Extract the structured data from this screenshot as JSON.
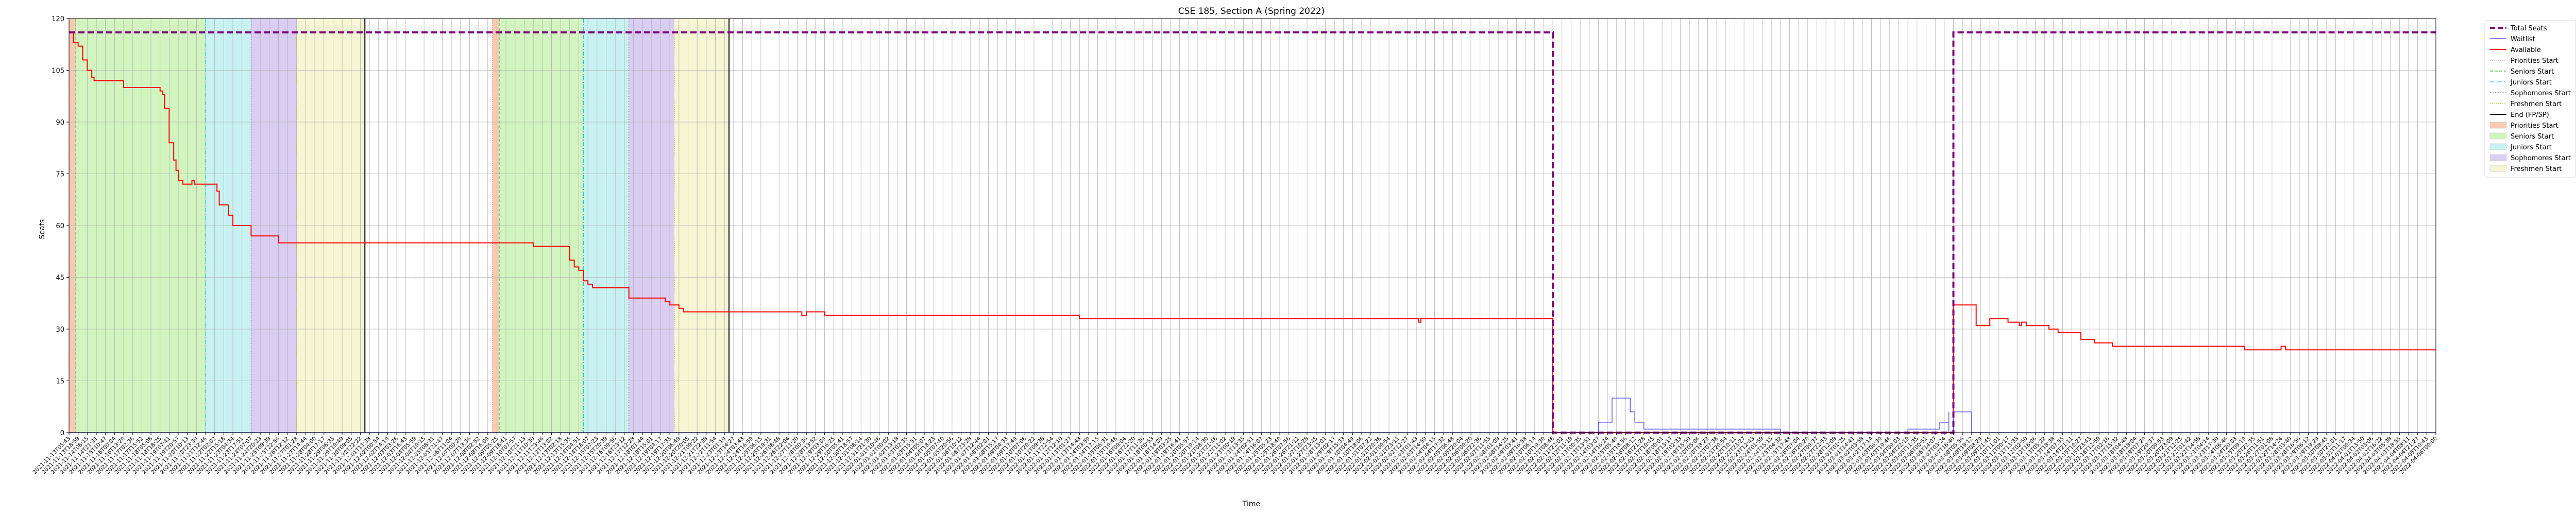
{
  "chart_data": {
    "type": "line",
    "title": "CSE 185, Section A (Spring 2022)",
    "xlabel": "Time",
    "ylabel": "Seats",
    "ylim": [
      0,
      120
    ],
    "yticks": [
      0,
      15,
      30,
      45,
      60,
      75,
      90,
      105,
      120
    ],
    "grid": true,
    "legend_position": "outside-right",
    "x_tick_label_samples": [
      "2021-11-13T05:43",
      "2022-01-07T19:00",
      "2022-02-26T00:00",
      "2022-04-06T00:00"
    ],
    "x_index_range": [
      0,
      520
    ],
    "series": [
      {
        "name": "Total Seats",
        "style": "dashed",
        "color": "#800080",
        "points": [
          [
            0,
            116
          ],
          [
            326,
            116
          ],
          [
            326,
            0
          ],
          [
            414,
            0
          ],
          [
            414,
            116
          ],
          [
            520,
            116
          ]
        ]
      },
      {
        "name": "Waitlist",
        "style": "solid",
        "color": "#5b5bf0",
        "points": [
          [
            0,
            0
          ],
          [
            335,
            0
          ],
          [
            336,
            3
          ],
          [
            339,
            10
          ],
          [
            342,
            10
          ],
          [
            343,
            6
          ],
          [
            344,
            3
          ],
          [
            346,
            1
          ],
          [
            375,
            1
          ],
          [
            376,
            0
          ],
          [
            403,
            0
          ],
          [
            404,
            1
          ],
          [
            410,
            1
          ],
          [
            411,
            3
          ],
          [
            413,
            6
          ],
          [
            413,
            0
          ],
          [
            414,
            6
          ],
          [
            418,
            6
          ],
          [
            418,
            0
          ],
          [
            520,
            0
          ]
        ]
      },
      {
        "name": "Available",
        "style": "solid",
        "color": "#ff0000",
        "points": [
          [
            0,
            116
          ],
          [
            1,
            113
          ],
          [
            2,
            112
          ],
          [
            3,
            108
          ],
          [
            4,
            105
          ],
          [
            5,
            103
          ],
          [
            5.5,
            102
          ],
          [
            11,
            102
          ],
          [
            12,
            100
          ],
          [
            19,
            100
          ],
          [
            20,
            99
          ],
          [
            20.5,
            98
          ],
          [
            21,
            94
          ],
          [
            22,
            84
          ],
          [
            23,
            79
          ],
          [
            23.5,
            76
          ],
          [
            24,
            73
          ],
          [
            25,
            72
          ],
          [
            26,
            72
          ],
          [
            27,
            73
          ],
          [
            27.5,
            72
          ],
          [
            32,
            72
          ],
          [
            32.5,
            70
          ],
          [
            33,
            66
          ],
          [
            35,
            63
          ],
          [
            36,
            60
          ],
          [
            39,
            60
          ],
          [
            40,
            57
          ],
          [
            45,
            57
          ],
          [
            46,
            55
          ],
          [
            101,
            55
          ],
          [
            102,
            54
          ],
          [
            109,
            54
          ],
          [
            110,
            50
          ],
          [
            111,
            48
          ],
          [
            112,
            47
          ],
          [
            113,
            44
          ],
          [
            114,
            43
          ],
          [
            115,
            42
          ],
          [
            122,
            42
          ],
          [
            123,
            39
          ],
          [
            130,
            39
          ],
          [
            131,
            38
          ],
          [
            132,
            37
          ],
          [
            133,
            37
          ],
          [
            134,
            36
          ],
          [
            135,
            35
          ],
          [
            160,
            35
          ],
          [
            161,
            34
          ],
          [
            162,
            35
          ],
          [
            165,
            35
          ],
          [
            166,
            34
          ],
          [
            221,
            34
          ],
          [
            222,
            33
          ],
          [
            296,
            33
          ],
          [
            296.5,
            32
          ],
          [
            297,
            33
          ],
          [
            326,
            33
          ],
          [
            326,
            0
          ],
          [
            414,
            0
          ],
          [
            414,
            37
          ],
          [
            418,
            37
          ],
          [
            419,
            31
          ],
          [
            421,
            31
          ],
          [
            422,
            33
          ],
          [
            425,
            33
          ],
          [
            426,
            32
          ],
          [
            428,
            32
          ],
          [
            428.5,
            31
          ],
          [
            429,
            32
          ],
          [
            430,
            31
          ],
          [
            434,
            31
          ],
          [
            435,
            30
          ],
          [
            437,
            29
          ],
          [
            441,
            29
          ],
          [
            442,
            27
          ],
          [
            444,
            27
          ],
          [
            445,
            26
          ],
          [
            448,
            26
          ],
          [
            449,
            25
          ],
          [
            477,
            25
          ],
          [
            478,
            24
          ],
          [
            485,
            24
          ],
          [
            486,
            25
          ],
          [
            487,
            24
          ],
          [
            520,
            24
          ]
        ]
      }
    ],
    "phases": [
      {
        "name": "Priorities Start",
        "x0": 0,
        "x1": 1.5,
        "color": "#f8c9b4"
      },
      {
        "name": "Seniors Start",
        "x0": 1.5,
        "x1": 30,
        "color": "#d2f5c0"
      },
      {
        "name": "Juniors Start",
        "x0": 30,
        "x1": 40,
        "color": "#c8f1f2"
      },
      {
        "name": "Sophomores Start",
        "x0": 40,
        "x1": 50,
        "color": "#dacdf2"
      },
      {
        "name": "Freshmen Start",
        "x0": 50,
        "x1": 65,
        "color": "#f6f5d4"
      },
      {
        "name": "Priorities Start",
        "x0": 93,
        "x1": 94.5,
        "color": "#f8c9b4"
      },
      {
        "name": "Seniors Start",
        "x0": 94.5,
        "x1": 113,
        "color": "#d2f5c0"
      },
      {
        "name": "Juniors Start",
        "x0": 113,
        "x1": 123,
        "color": "#c8f1f2"
      },
      {
        "name": "Sophomores Start",
        "x0": 123,
        "x1": 133,
        "color": "#dacdf2"
      },
      {
        "name": "Freshmen Start",
        "x0": 133,
        "x1": 145,
        "color": "#f6f5d4"
      }
    ],
    "end_lines": [
      65,
      145
    ],
    "legend": [
      {
        "label": "Total Seats",
        "kind": "line",
        "color": "#800080",
        "dash": "10,5",
        "width": 4
      },
      {
        "label": "Waitlist",
        "kind": "line",
        "color": "#5b5bf0",
        "dash": "",
        "width": 1.5
      },
      {
        "label": "Available",
        "kind": "line",
        "color": "#ff0000",
        "dash": "",
        "width": 2
      },
      {
        "label": "Priorities Start",
        "kind": "line",
        "color": "#f4a582",
        "dash": "2,2",
        "width": 1.2
      },
      {
        "label": "Seniors Start",
        "kind": "line",
        "color": "#2ca02c",
        "dash": "6,3",
        "width": 1.2
      },
      {
        "label": "Juniors Start",
        "kind": "line",
        "color": "#17becf",
        "dash": "8,3,2,3",
        "width": 1.2
      },
      {
        "label": "Sophomores Start",
        "kind": "line",
        "color": "#9467bd",
        "dash": "2,3",
        "width": 1.2
      },
      {
        "label": "Freshmen Start",
        "kind": "line",
        "color": "#bcbd22",
        "dash": "1,3",
        "width": 1.2
      },
      {
        "label": "End (FP/SP)",
        "kind": "line",
        "color": "#000000",
        "dash": "",
        "width": 2
      },
      {
        "label": "Priorities Start",
        "kind": "patch",
        "color": "#f8c9b4"
      },
      {
        "label": "Seniors Start",
        "kind": "patch",
        "color": "#d2f5c0"
      },
      {
        "label": "Juniors Start",
        "kind": "patch",
        "color": "#c8f1f2"
      },
      {
        "label": "Sophomores Start",
        "kind": "patch",
        "color": "#dacdf2"
      },
      {
        "label": "Freshmen Start",
        "kind": "patch",
        "color": "#f6f5d4"
      }
    ]
  }
}
